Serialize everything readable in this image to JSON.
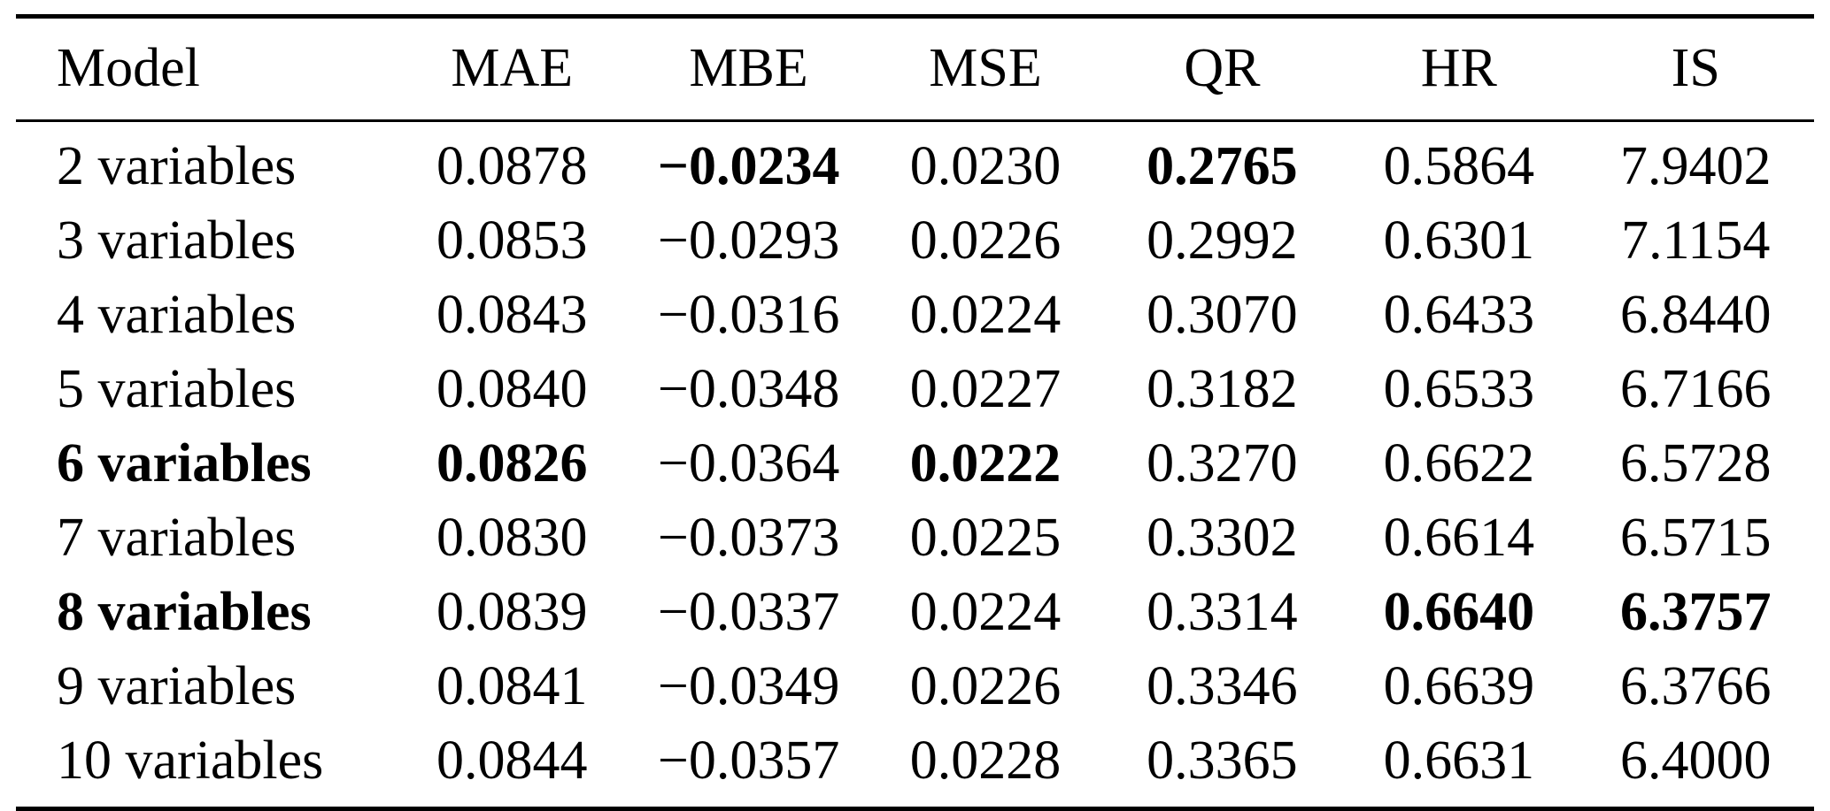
{
  "table": {
    "columns": [
      "Model",
      "MAE",
      "MBE",
      "MSE",
      "QR",
      "HR",
      "IS"
    ],
    "rows": [
      {
        "cells": [
          "2 variables",
          "0.0878",
          "−0.0234",
          "0.0230",
          "0.2765",
          "0.5864",
          "7.9402"
        ],
        "bold": [
          2,
          4
        ]
      },
      {
        "cells": [
          "3 variables",
          "0.0853",
          "−0.0293",
          "0.0226",
          "0.2992",
          "0.6301",
          "7.1154"
        ],
        "bold": []
      },
      {
        "cells": [
          "4 variables",
          "0.0843",
          "−0.0316",
          "0.0224",
          "0.3070",
          "0.6433",
          "6.8440"
        ],
        "bold": []
      },
      {
        "cells": [
          "5 variables",
          "0.0840",
          "−0.0348",
          "0.0227",
          "0.3182",
          "0.6533",
          "6.7166"
        ],
        "bold": []
      },
      {
        "cells": [
          "6 variables",
          "0.0826",
          "−0.0364",
          "0.0222",
          "0.3270",
          "0.6622",
          "6.5728"
        ],
        "bold": [
          0,
          1,
          3
        ]
      },
      {
        "cells": [
          "7 variables",
          "0.0830",
          "−0.0373",
          "0.0225",
          "0.3302",
          "0.6614",
          "6.5715"
        ],
        "bold": []
      },
      {
        "cells": [
          "8 variables",
          "0.0839",
          "−0.0337",
          "0.0224",
          "0.3314",
          "0.6640",
          "6.3757"
        ],
        "bold": [
          0,
          5,
          6
        ]
      },
      {
        "cells": [
          "9 variables",
          "0.0841",
          "−0.0349",
          "0.0226",
          "0.3346",
          "0.6639",
          "6.3766"
        ],
        "bold": []
      },
      {
        "cells": [
          "10 variables",
          "0.0844",
          "−0.0357",
          "0.0228",
          "0.3365",
          "0.6631",
          "6.4000"
        ],
        "bold": []
      }
    ]
  },
  "chart_data": {
    "type": "table",
    "title": "",
    "columns": [
      "Model",
      "MAE",
      "MBE",
      "MSE",
      "QR",
      "HR",
      "IS"
    ],
    "rows": [
      [
        "2 variables",
        0.0878,
        -0.0234,
        0.023,
        0.2765,
        0.5864,
        7.9402
      ],
      [
        "3 variables",
        0.0853,
        -0.0293,
        0.0226,
        0.2992,
        0.6301,
        7.1154
      ],
      [
        "4 variables",
        0.0843,
        -0.0316,
        0.0224,
        0.307,
        0.6433,
        6.844
      ],
      [
        "5 variables",
        0.084,
        -0.0348,
        0.0227,
        0.3182,
        0.6533,
        6.7166
      ],
      [
        "6 variables",
        0.0826,
        -0.0364,
        0.0222,
        0.327,
        0.6622,
        6.5728
      ],
      [
        "7 variables",
        0.083,
        -0.0373,
        0.0225,
        0.3302,
        0.6614,
        6.5715
      ],
      [
        "8 variables",
        0.0839,
        -0.0337,
        0.0224,
        0.3314,
        0.664,
        6.3757
      ],
      [
        "9 variables",
        0.0841,
        -0.0349,
        0.0226,
        0.3346,
        0.6639,
        6.3766
      ],
      [
        "10 variables",
        0.0844,
        -0.0357,
        0.0228,
        0.3365,
        0.6631,
        6.4
      ]
    ]
  }
}
